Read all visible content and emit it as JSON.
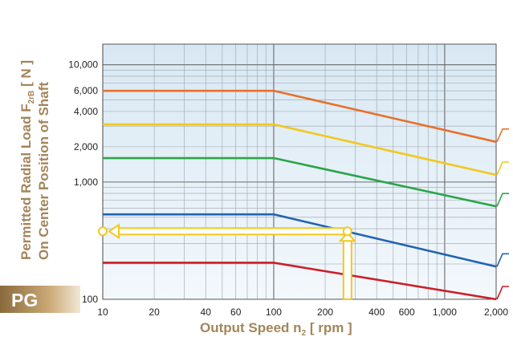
{
  "chart_data": {
    "type": "line",
    "x_scale": "log",
    "y_scale": "log",
    "xlim": [
      10,
      2000
    ],
    "ylim": [
      100,
      15000
    ],
    "grid": true,
    "x_tick_labels": [
      "10",
      "20",
      "40",
      "60",
      "100",
      "200",
      "400",
      "600",
      "1,000",
      "2,000"
    ],
    "x_tick_values": [
      10,
      20,
      40,
      60,
      100,
      200,
      400,
      600,
      1000,
      2000
    ],
    "y_tick_labels": [
      "100",
      "1,000",
      "2,000",
      "4,000",
      "6,000",
      "10,000"
    ],
    "y_tick_values": [
      100,
      1000,
      2000,
      4000,
      6000,
      10000
    ],
    "xlabel": {
      "main": "Output Speed n",
      "sub": "2",
      "unit": " [ rpm ]"
    },
    "ylabel": {
      "line1_main": "Permitted Radial Load F",
      "line1_sub": "2rB",
      "line1_unit": " [ N ]",
      "line2": "On Center Position of Shaft"
    },
    "badge": "PG",
    "series": [
      {
        "color": "#e8702a",
        "x": [
          10,
          100,
          2000
        ],
        "y": [
          6000,
          6000,
          2200
        ]
      },
      {
        "color": "#f2c81e",
        "x": [
          10,
          100,
          2000
        ],
        "y": [
          3100,
          3100,
          1150
        ]
      },
      {
        "color": "#2aa54a",
        "x": [
          10,
          100,
          2000
        ],
        "y": [
          1600,
          1600,
          620
        ]
      },
      {
        "color": "#2163b4",
        "x": [
          10,
          100,
          2000
        ],
        "y": [
          530,
          530,
          190
        ]
      },
      {
        "color": "#cc1f2a",
        "x": [
          10,
          100,
          2000
        ],
        "y": [
          205,
          205,
          100
        ]
      }
    ],
    "annotation": {
      "color": "#f2c81e",
      "x": 270,
      "y": 380
    }
  }
}
